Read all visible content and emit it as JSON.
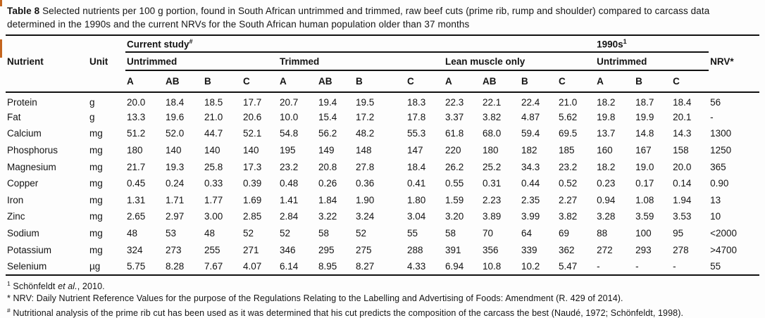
{
  "title": {
    "label": "Table 8",
    "text": "Selected nutrients per 100 g portion, found in South African untrimmed and trimmed, raw beef cuts (prime rib, rump and shoulder) compared to carcass data determined in the 1990s and the current NRVs for the South African human population older than 37 months"
  },
  "table": {
    "nutrient_header": "Nutrient",
    "unit_header": "Unit",
    "nrv_header": "NRV*",
    "group_row": [
      {
        "label": "Current study",
        "sup": "#"
      },
      {
        "label": "1990s",
        "sup": "1"
      }
    ],
    "subgroup_row": [
      "Untrimmed",
      "Trimmed",
      "Lean muscle only",
      "Untrimmed"
    ],
    "subcols": [
      "A",
      "AB",
      "B",
      "C",
      "A",
      "AB",
      "B",
      "C",
      "A",
      "AB",
      "B",
      "C",
      "A",
      "B",
      "C"
    ],
    "rows": [
      {
        "nutrient": "Protein",
        "unit": "g",
        "values": [
          "20.0",
          "18.4",
          "18.5",
          "17.7",
          "20.7",
          "19.4",
          "19.5",
          "18.3",
          "22.3",
          "22.1",
          "22.4",
          "21.0",
          "18.2",
          "18.7",
          "18.4"
        ],
        "nrv": "56"
      },
      {
        "nutrient": "Fat",
        "unit": "g",
        "values": [
          "13.3",
          "19.6",
          "21.0",
          "20.6",
          "10.0",
          "15.4",
          "17.2",
          "17.8",
          "3.37",
          "3.82",
          "4.87",
          "5.62",
          "19.8",
          "19.9",
          "20.1"
        ],
        "nrv": "-"
      },
      {
        "nutrient": "Calcium",
        "unit": "mg",
        "values": [
          "51.2",
          "52.0",
          "44.7",
          "52.1",
          "54.8",
          "56.2",
          "48.2",
          "55.3",
          "61.8",
          "68.0",
          "59.4",
          "69.5",
          "13.7",
          "14.8",
          "14.3"
        ],
        "nrv": "1300"
      },
      {
        "nutrient": "Phosphorus",
        "unit": "mg",
        "values": [
          "180",
          "140",
          "140",
          "140",
          "195",
          "149",
          "148",
          "147",
          "220",
          "180",
          "182",
          "185",
          "160",
          "167",
          "158"
        ],
        "nrv": "1250"
      },
      {
        "nutrient": "Magnesium",
        "unit": "mg",
        "values": [
          "21.7",
          "19.3",
          "25.8",
          "17.3",
          "23.2",
          "20.8",
          "27.8",
          "18.4",
          "26.2",
          "25.2",
          "34.3",
          "23.2",
          "18.2",
          "19.0",
          "20.0"
        ],
        "nrv": "365"
      },
      {
        "nutrient": "Copper",
        "unit": "mg",
        "values": [
          "0.45",
          "0.24",
          "0.33",
          "0.39",
          "0.48",
          "0.26",
          "0.36",
          "0.41",
          "0.55",
          "0.31",
          "0.44",
          "0.52",
          "0.23",
          "0.17",
          "0.14"
        ],
        "nrv": "0.90"
      },
      {
        "nutrient": "Iron",
        "unit": "mg",
        "values": [
          "1.31",
          "1.71",
          "1.77",
          "1.69",
          "1.41",
          "1.84",
          "1.90",
          "1.80",
          "1.59",
          "2.23",
          "2.35",
          "2.27",
          "0.94",
          "1.08",
          "1.94"
        ],
        "nrv": "13"
      },
      {
        "nutrient": "Zinc",
        "unit": "mg",
        "values": [
          "2.65",
          "2.97",
          "3.00",
          "2.85",
          "2.84",
          "3.22",
          "3.24",
          "3.04",
          "3.20",
          "3.89",
          "3.99",
          "3.82",
          "3.28",
          "3.59",
          "3.53"
        ],
        "nrv": "10"
      },
      {
        "nutrient": "Sodium",
        "unit": "mg",
        "values": [
          "48",
          "53",
          "48",
          "52",
          "52",
          "58",
          "52",
          "55",
          "58",
          "70",
          "64",
          "69",
          "88",
          "100",
          "95"
        ],
        "nrv": "<2000"
      },
      {
        "nutrient": "Potassium",
        "unit": "mg",
        "values": [
          "324",
          "273",
          "255",
          "271",
          "346",
          "295",
          "275",
          "288",
          "391",
          "356",
          "339",
          "362",
          "272",
          "293",
          "278"
        ],
        "nrv": ">4700"
      },
      {
        "nutrient": "Selenium",
        "unit": "µg",
        "values": [
          "5.75",
          "8.28",
          "7.67",
          "4.07",
          "6.14",
          "8.95",
          "8.27",
          "4.33",
          "6.94",
          "10.8",
          "10.2",
          "5.47",
          "-",
          "-",
          "-"
        ],
        "nrv": "55"
      }
    ]
  },
  "footnotes": [
    {
      "marker": "1",
      "marker_sup": true,
      "parts": [
        {
          "t": "Schönfeldt "
        },
        {
          "t": "et al.",
          "i": true
        },
        {
          "t": ", 2010."
        }
      ]
    },
    {
      "marker": "*",
      "marker_sup": false,
      "parts": [
        {
          "t": "NRV: Daily Nutrient Reference Values for the purpose of the Regulations Relating to the Labelling and Advertising of Foods: Amendment (R. 429 of 2014)."
        }
      ]
    },
    {
      "marker": "#",
      "marker_sup": true,
      "parts": [
        {
          "t": "Nutritional analysis of the prime rib cut has been used as it was determined that his cut predicts the composition of the carcass the best (Naudé, 1972; Schönfeldt, 1998)."
        }
      ]
    }
  ]
}
